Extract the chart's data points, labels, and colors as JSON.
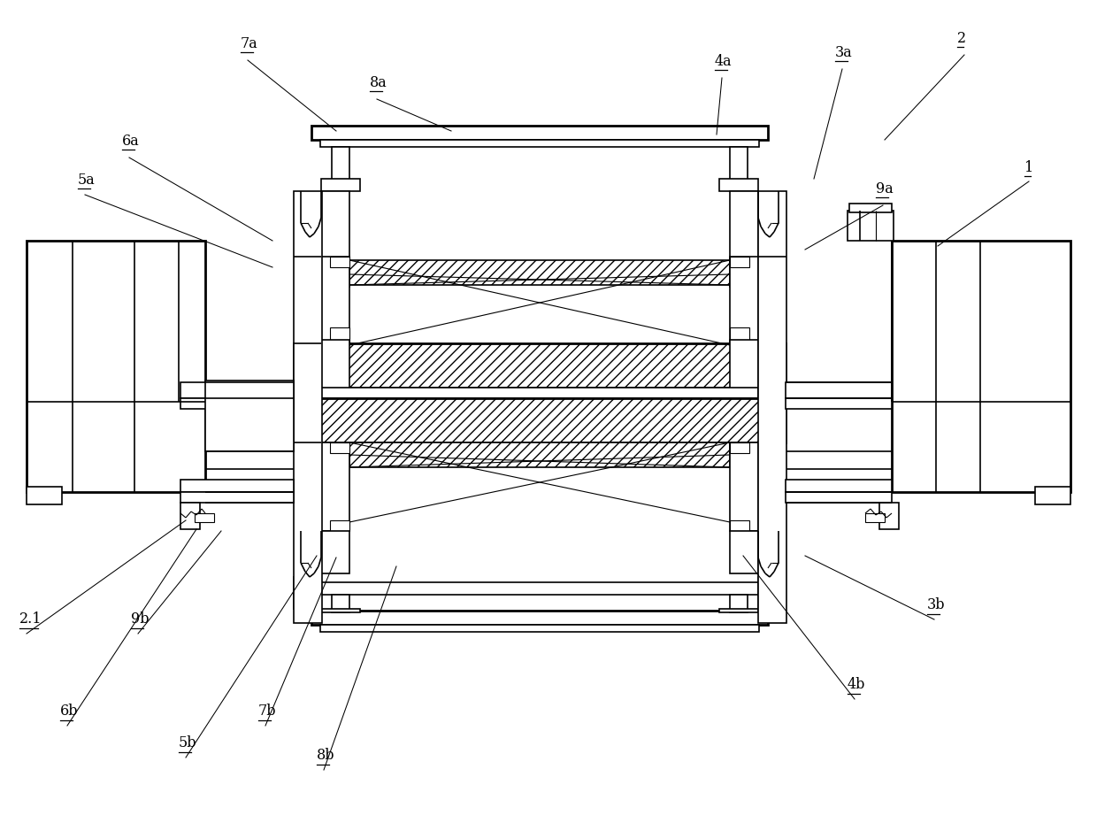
{
  "bg_color": "#ffffff",
  "fig_width": 12.4,
  "fig_height": 9.3,
  "dpi": 100,
  "lw_thin": 0.8,
  "lw_med": 1.2,
  "lw_thick": 2.0,
  "labels": [
    [
      "1",
      1158,
      198
    ],
    [
      "2",
      1082,
      52
    ],
    [
      "3a",
      944,
      68
    ],
    [
      "4a",
      808,
      78
    ],
    [
      "5a",
      88,
      212
    ],
    [
      "6a",
      138,
      168
    ],
    [
      "7a",
      272,
      58
    ],
    [
      "8a",
      418,
      102
    ],
    [
      "9a",
      990,
      222
    ],
    [
      "2.1",
      22,
      708
    ],
    [
      "9b",
      148,
      708
    ],
    [
      "3b",
      1048,
      692
    ],
    [
      "4b",
      958,
      782
    ],
    [
      "5b",
      202,
      848
    ],
    [
      "6b",
      68,
      812
    ],
    [
      "7b",
      292,
      812
    ],
    [
      "8b",
      358,
      862
    ]
  ],
  "leader_lines": [
    [
      1163,
      205,
      1060,
      278
    ],
    [
      1090,
      62,
      1000,
      158
    ],
    [
      952,
      78,
      920,
      202
    ],
    [
      816,
      88,
      810,
      152
    ],
    [
      96,
      220,
      308,
      302
    ],
    [
      146,
      178,
      308,
      272
    ],
    [
      280,
      68,
      380,
      148
    ],
    [
      426,
      112,
      510,
      148
    ],
    [
      998,
      232,
      910,
      282
    ],
    [
      30,
      716,
      210,
      588
    ],
    [
      156,
      716,
      250,
      600
    ],
    [
      1056,
      700,
      910,
      628
    ],
    [
      966,
      790,
      840,
      628
    ],
    [
      210,
      856,
      358,
      628
    ],
    [
      76,
      820,
      222,
      598
    ],
    [
      300,
      820,
      380,
      630
    ],
    [
      366,
      870,
      448,
      640
    ]
  ]
}
